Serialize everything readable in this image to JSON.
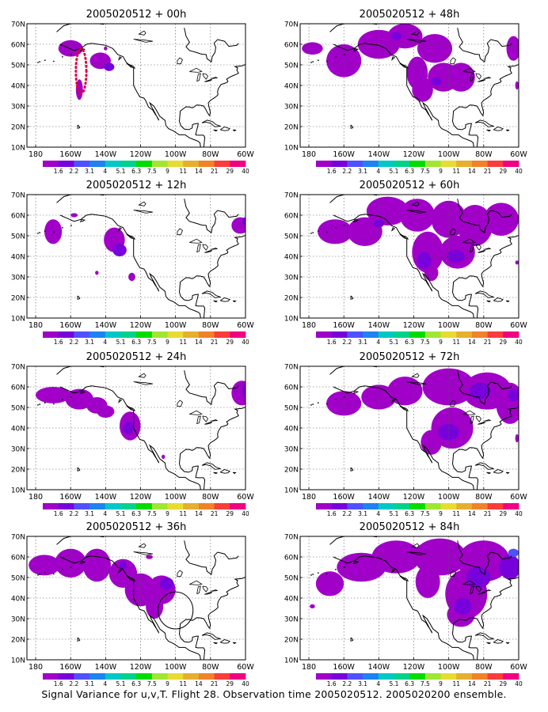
{
  "panels": [
    {
      "title": "2005020512 + 00h",
      "blobs": [
        {
          "pos": [
            -160,
            58
          ],
          "radius": [
            7,
            4
          ],
          "level": 1
        },
        {
          "pos": [
            -143,
            52
          ],
          "radius": [
            6,
            4
          ],
          "level": 1
        },
        {
          "pos": [
            -155,
            38
          ],
          "radius": [
            2,
            5
          ],
          "level": 1
        },
        {
          "pos": [
            -138,
            49
          ],
          "radius": [
            3,
            2
          ],
          "level": 2
        },
        {
          "pos": [
            -140,
            58
          ],
          "radius": [
            1,
            1
          ],
          "level": 1
        }
      ],
      "contours": [
        {
          "kind": "dotted-ellipse",
          "center": [
            -154,
            47
          ],
          "radius": [
            3,
            11
          ]
        }
      ]
    },
    {
      "title": "2005020512 + 12h",
      "blobs": [
        {
          "pos": [
            -170,
            52
          ],
          "radius": [
            5,
            6
          ],
          "level": 1
        },
        {
          "pos": [
            -158,
            60
          ],
          "radius": [
            2,
            1
          ],
          "level": 1
        },
        {
          "pos": [
            -135,
            48
          ],
          "radius": [
            6,
            6
          ],
          "level": 1
        },
        {
          "pos": [
            -132,
            43
          ],
          "radius": [
            4,
            3
          ],
          "level": 2
        },
        {
          "pos": [
            -125,
            30
          ],
          "radius": [
            2,
            2
          ],
          "level": 1
        },
        {
          "pos": [
            -145,
            32
          ],
          "radius": [
            1,
            1
          ],
          "level": 1
        },
        {
          "pos": [
            -63,
            55
          ],
          "radius": [
            5,
            4
          ],
          "level": 1
        },
        {
          "pos": [
            -60,
            57
          ],
          "radius": [
            2,
            2
          ],
          "level": 2
        }
      ],
      "contours": []
    },
    {
      "title": "2005020512 + 24h",
      "blobs": [
        {
          "pos": [
            -170,
            56
          ],
          "radius": [
            10,
            4
          ],
          "level": 1
        },
        {
          "pos": [
            -155,
            54
          ],
          "radius": [
            8,
            5
          ],
          "level": 1
        },
        {
          "pos": [
            -145,
            51
          ],
          "radius": [
            6,
            4
          ],
          "level": 1
        },
        {
          "pos": [
            -140,
            48
          ],
          "radius": [
            5,
            3
          ],
          "level": 1
        },
        {
          "pos": [
            -126,
            41
          ],
          "radius": [
            6,
            7
          ],
          "level": 1
        },
        {
          "pos": [
            -127,
            40
          ],
          "radius": [
            3,
            3
          ],
          "level": 2
        },
        {
          "pos": [
            -107,
            26
          ],
          "radius": [
            1,
            1
          ],
          "level": 1
        },
        {
          "pos": [
            -62,
            57
          ],
          "radius": [
            6,
            6
          ],
          "level": 1
        },
        {
          "pos": [
            -60,
            58
          ],
          "radius": [
            2,
            3
          ],
          "level": 2
        }
      ],
      "contours": []
    },
    {
      "title": "2005020512 + 36h",
      "blobs": [
        {
          "pos": [
            -175,
            56
          ],
          "radius": [
            9,
            5
          ],
          "level": 1
        },
        {
          "pos": [
            -160,
            57
          ],
          "radius": [
            9,
            7
          ],
          "level": 1
        },
        {
          "pos": [
            -145,
            56
          ],
          "radius": [
            8,
            8
          ],
          "level": 1
        },
        {
          "pos": [
            -130,
            52
          ],
          "radius": [
            8,
            7
          ],
          "level": 1
        },
        {
          "pos": [
            -120,
            44
          ],
          "radius": [
            9,
            8
          ],
          "level": 1
        },
        {
          "pos": [
            -108,
            44
          ],
          "radius": [
            8,
            7
          ],
          "level": 1
        },
        {
          "pos": [
            -105,
            47
          ],
          "radius": [
            4,
            3
          ],
          "level": 2
        },
        {
          "pos": [
            -112,
            36
          ],
          "radius": [
            5,
            6
          ],
          "level": 1
        },
        {
          "pos": [
            -130,
            56
          ],
          "radius": [
            2,
            2
          ],
          "level": 2
        },
        {
          "pos": [
            -115,
            60
          ],
          "radius": [
            2,
            1
          ],
          "level": 1
        }
      ],
      "contours": [
        {
          "kind": "ellipse",
          "center": [
            -100,
            34
          ],
          "radius": [
            10,
            9
          ]
        }
      ]
    },
    {
      "title": "2005020512 + 48h",
      "blobs": [
        {
          "pos": [
            -178,
            58
          ],
          "radius": [
            6,
            3
          ],
          "level": 1
        },
        {
          "pos": [
            -160,
            52
          ],
          "radius": [
            10,
            8
          ],
          "level": 1
        },
        {
          "pos": [
            -140,
            60
          ],
          "radius": [
            12,
            7
          ],
          "level": 1
        },
        {
          "pos": [
            -125,
            64
          ],
          "radius": [
            10,
            6
          ],
          "level": 1
        },
        {
          "pos": [
            -108,
            58
          ],
          "radius": [
            10,
            7
          ],
          "level": 1
        },
        {
          "pos": [
            -118,
            46
          ],
          "radius": [
            6,
            8
          ],
          "level": 1
        },
        {
          "pos": [
            -103,
            44
          ],
          "radius": [
            9,
            7
          ],
          "level": 1
        },
        {
          "pos": [
            -93,
            44
          ],
          "radius": [
            8,
            7
          ],
          "level": 1
        },
        {
          "pos": [
            -115,
            38
          ],
          "radius": [
            6,
            6
          ],
          "level": 1
        },
        {
          "pos": [
            -130,
            64
          ],
          "radius": [
            3,
            2
          ],
          "level": 2
        },
        {
          "pos": [
            -107,
            42
          ],
          "radius": [
            3,
            2
          ],
          "level": 2
        },
        {
          "pos": [
            -63,
            58
          ],
          "radius": [
            4,
            6
          ],
          "level": 1
        },
        {
          "pos": [
            -61,
            40
          ],
          "radius": [
            1,
            2
          ],
          "level": 1
        }
      ],
      "contours": []
    },
    {
      "title": "2005020512 + 60h",
      "blobs": [
        {
          "pos": [
            -165,
            52
          ],
          "radius": [
            10,
            6
          ],
          "level": 1
        },
        {
          "pos": [
            -148,
            52
          ],
          "radius": [
            10,
            7
          ],
          "level": 1
        },
        {
          "pos": [
            -135,
            62
          ],
          "radius": [
            12,
            7
          ],
          "level": 1
        },
        {
          "pos": [
            -118,
            60
          ],
          "radius": [
            10,
            8
          ],
          "level": 1
        },
        {
          "pos": [
            -100,
            58
          ],
          "radius": [
            10,
            9
          ],
          "level": 1
        },
        {
          "pos": [
            -85,
            55
          ],
          "radius": [
            10,
            10
          ],
          "level": 1
        },
        {
          "pos": [
            -70,
            58
          ],
          "radius": [
            10,
            8
          ],
          "level": 1
        },
        {
          "pos": [
            -112,
            42
          ],
          "radius": [
            9,
            10
          ],
          "level": 1
        },
        {
          "pos": [
            -95,
            42
          ],
          "radius": [
            10,
            8
          ],
          "level": 1
        },
        {
          "pos": [
            -114,
            38
          ],
          "radius": [
            4,
            4
          ],
          "level": 2
        },
        {
          "pos": [
            -96,
            40
          ],
          "radius": [
            5,
            3
          ],
          "level": 2
        },
        {
          "pos": [
            -140,
            56
          ],
          "radius": [
            3,
            2
          ],
          "level": 2
        },
        {
          "pos": [
            -110,
            32
          ],
          "radius": [
            4,
            4
          ],
          "level": 1
        },
        {
          "pos": [
            -61,
            37
          ],
          "radius": [
            1,
            1
          ],
          "level": 1
        }
      ],
      "contours": []
    },
    {
      "title": "2005020512 + 72h",
      "blobs": [
        {
          "pos": [
            -160,
            52
          ],
          "radius": [
            10,
            6
          ],
          "level": 1
        },
        {
          "pos": [
            -140,
            55
          ],
          "radius": [
            10,
            6
          ],
          "level": 1
        },
        {
          "pos": [
            -125,
            58
          ],
          "radius": [
            10,
            7
          ],
          "level": 1
        },
        {
          "pos": [
            -100,
            60
          ],
          "radius": [
            15,
            9
          ],
          "level": 1
        },
        {
          "pos": [
            -78,
            58
          ],
          "radius": [
            14,
            9
          ],
          "level": 1
        },
        {
          "pos": [
            -65,
            52
          ],
          "radius": [
            8,
            10
          ],
          "level": 1
        },
        {
          "pos": [
            -98,
            40
          ],
          "radius": [
            12,
            10
          ],
          "level": 1
        },
        {
          "pos": [
            -110,
            33
          ],
          "radius": [
            6,
            6
          ],
          "level": 1
        },
        {
          "pos": [
            -100,
            38
          ],
          "radius": [
            6,
            4
          ],
          "level": 2
        },
        {
          "pos": [
            -82,
            58
          ],
          "radius": [
            6,
            4
          ],
          "level": 2
        },
        {
          "pos": [
            -63,
            56
          ],
          "radius": [
            3,
            3
          ],
          "level": 2
        },
        {
          "pos": [
            -61,
            35
          ],
          "radius": [
            1,
            2
          ],
          "level": 1
        }
      ],
      "contours": []
    },
    {
      "title": "2005020512 + 84h",
      "blobs": [
        {
          "pos": [
            -168,
            47
          ],
          "radius": [
            8,
            6
          ],
          "level": 1
        },
        {
          "pos": [
            -150,
            55
          ],
          "radius": [
            14,
            7
          ],
          "level": 1
        },
        {
          "pos": [
            -130,
            60
          ],
          "radius": [
            14,
            8
          ],
          "level": 1
        },
        {
          "pos": [
            -105,
            60
          ],
          "radius": [
            15,
            9
          ],
          "level": 1
        },
        {
          "pos": [
            -80,
            58
          ],
          "radius": [
            15,
            10
          ],
          "level": 1
        },
        {
          "pos": [
            -90,
            42
          ],
          "radius": [
            12,
            12
          ],
          "level": 1
        },
        {
          "pos": [
            -93,
            32
          ],
          "radius": [
            8,
            6
          ],
          "level": 1
        },
        {
          "pos": [
            -112,
            48
          ],
          "radius": [
            7,
            8
          ],
          "level": 1
        },
        {
          "pos": [
            -65,
            55
          ],
          "radius": [
            6,
            6
          ],
          "level": 2
        },
        {
          "pos": [
            -83,
            50
          ],
          "radius": [
            7,
            5
          ],
          "level": 2
        },
        {
          "pos": [
            -92,
            36
          ],
          "radius": [
            5,
            4
          ],
          "level": 2
        },
        {
          "pos": [
            -63,
            62
          ],
          "radius": [
            3,
            2
          ],
          "level": 3
        },
        {
          "pos": [
            -178,
            36
          ],
          "radius": [
            1.5,
            1
          ],
          "level": 1
        }
      ],
      "contours": []
    }
  ],
  "axes": {
    "lon_range": [
      -185,
      -60
    ],
    "lat_range": [
      10,
      70
    ],
    "lon_ticks": [
      {
        "lon": -180,
        "label": "180"
      },
      {
        "lon": -160,
        "label": "160W"
      },
      {
        "lon": -140,
        "label": "140W"
      },
      {
        "lon": -120,
        "label": "120W"
      },
      {
        "lon": -100,
        "label": "100W"
      },
      {
        "lon": -80,
        "label": "80W"
      },
      {
        "lon": -60,
        "label": "60W"
      }
    ],
    "lat_ticks": [
      {
        "lat": 10,
        "label": "10N"
      },
      {
        "lat": 20,
        "label": "20N"
      },
      {
        "lat": 30,
        "label": "30N"
      },
      {
        "lat": 40,
        "label": "40N"
      },
      {
        "lat": 50,
        "label": "50N"
      },
      {
        "lat": 60,
        "label": "60N"
      },
      {
        "lat": 70,
        "label": "70N"
      }
    ],
    "grid": true
  },
  "colorbar": {
    "colors": [
      "#a000c8",
      "#7800dc",
      "#5050ff",
      "#1e82f0",
      "#00c8c8",
      "#00d28c",
      "#00dc00",
      "#a0e632",
      "#e6dc32",
      "#e6af2d",
      "#f08228",
      "#fa3c3c",
      "#f00082"
    ],
    "labels": [
      "1.6",
      "2.2",
      "3.1",
      "4",
      "5.1",
      "6.3",
      "7.5",
      "9",
      "11",
      "14",
      "21",
      "29",
      "40"
    ]
  },
  "level_colors": [
    "#ffffff",
    "#a000c8",
    "#7800dc",
    "#5050ff"
  ],
  "caption": "Signal Variance for u,v,T. Flight 28. Observation time 2005020512. 2005020200 ensemble."
}
